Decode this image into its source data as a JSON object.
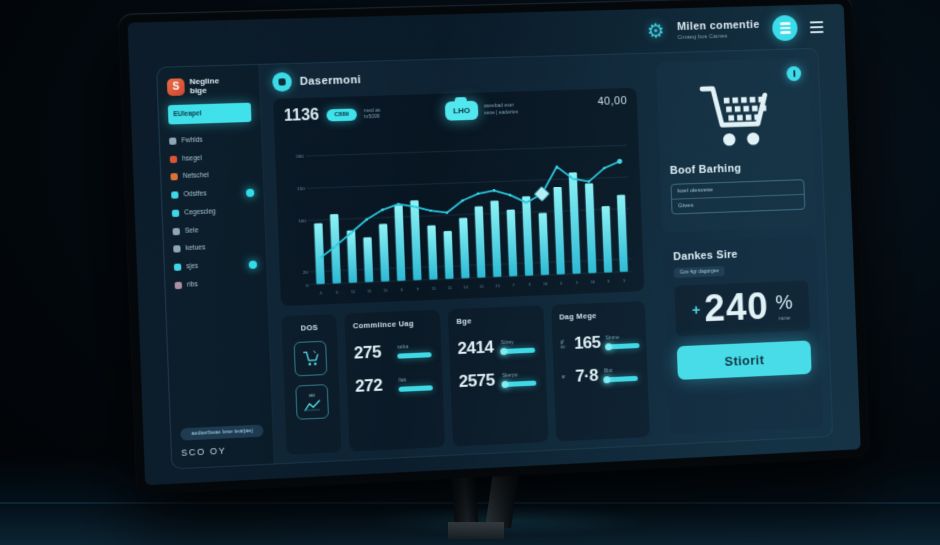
{
  "colors": {
    "accent": "#3fe3ec",
    "orange": "#e2512e",
    "panel": "#0e2130",
    "text": "#dcebf2",
    "muted": "#7d9fb0"
  },
  "icon_glyphs": {
    "gear": "⚙"
  },
  "screen_header": {
    "title": "Milen comentie",
    "subtitle": "Cmaeg bos Cames"
  },
  "sidebar": {
    "logo_glyph": "S",
    "logo_line1": "Negline",
    "logo_line2": "bige",
    "search_label": "EUleapel",
    "items": [
      {
        "label": "Fwhlds",
        "color": "#8fa8b5",
        "badge": false
      },
      {
        "label": "hsegel",
        "color": "#e2512e",
        "badge": false
      },
      {
        "label": "Netschel",
        "color": "#e07030",
        "badge": false
      },
      {
        "label": "Odstfes",
        "color": "#3fd8e6",
        "badge": true
      },
      {
        "label": "Cegescleg",
        "color": "#3fd8e6",
        "badge": false
      },
      {
        "label": "Sele",
        "color": "#8fa8b5",
        "badge": false
      },
      {
        "label": "ketues",
        "color": "#8fa8b5",
        "badge": false
      },
      {
        "label": "sjes",
        "color": "#3fd8e6",
        "badge": true
      },
      {
        "label": "ribs",
        "color": "#b08fa0",
        "badge": false
      }
    ],
    "footer_pill": "aedserbeae lese tearjaej",
    "footer_text": "SCO OY"
  },
  "main": {
    "page_title": "Dasermoni",
    "chart_card": {
      "big_value": "1136",
      "value_badge": "C889",
      "note_line1": "med as",
      "note_line2": "br5099",
      "center_badge": "LHO",
      "center_note_line1": "aseebad eser",
      "center_note_line2": "eese | eadertes",
      "corner_value": "40,00"
    },
    "stats_cards": {
      "dos": {
        "title": "DOS",
        "trend_tag": "MB"
      },
      "commiince": {
        "title": "Commiince Uag",
        "rows": [
          {
            "value": "275",
            "label": "seba"
          },
          {
            "value": "272",
            "label": "fiak"
          }
        ]
      },
      "bge": {
        "title": "Bge",
        "rows": [
          {
            "value": "2414",
            "label": "Sörey"
          },
          {
            "value": "2575",
            "label": "Skerpo"
          }
        ]
      },
      "dag": {
        "title": "Dag Mege",
        "rows": [
          {
            "value": "165",
            "prefix": "gf\nso",
            "label": "Sinme"
          },
          {
            "value": "7·8",
            "prefix": "ar",
            "label": "Blot"
          }
        ]
      }
    }
  },
  "right_column": {
    "cart_card": {
      "title": "Boof Barhing",
      "field1": "koel olesvese",
      "field2": "Gtves"
    },
    "rate_card": {
      "title": "Dankes Sire",
      "subtitle": "Gov 4gr dagorgee",
      "value_sign": "+",
      "value": "240",
      "unit": "%",
      "unit_label": "rane",
      "button_label": "Stiorit"
    }
  },
  "chart_data": {
    "type": "bar",
    "title": "",
    "xlabel": "",
    "ylabel": "",
    "categories": [
      "4",
      "6",
      "11",
      "11",
      "11",
      "6",
      "9",
      "11",
      "11",
      "14",
      "11",
      "15",
      "7",
      "3",
      "16",
      "0",
      "5",
      "16",
      "3",
      "5"
    ],
    "series": [
      {
        "name": "volume",
        "type": "bar",
        "values": [
          95,
          108,
          82,
          70,
          90,
          118,
          125,
          85,
          75,
          95,
          112,
          120,
          105,
          125,
          98,
          138,
          160,
          142,
          105,
          122
        ]
      },
      {
        "name": "trend",
        "type": "line",
        "values": [
          40,
          58,
          78,
          98,
          112,
          120,
          115,
          108,
          104,
          122,
          132,
          136,
          128,
          115,
          128,
          170,
          150,
          145,
          165,
          175
        ]
      }
    ],
    "y_ticks": [
      "200",
      "150",
      "100",
      "20",
      "0"
    ],
    "ylim": [
      0,
      200
    ],
    "marker_index": 14,
    "corner_value": "40,00",
    "grid": true,
    "legend": false,
    "bar_color": "#5ce8ee",
    "line_color": "#27c3da"
  }
}
